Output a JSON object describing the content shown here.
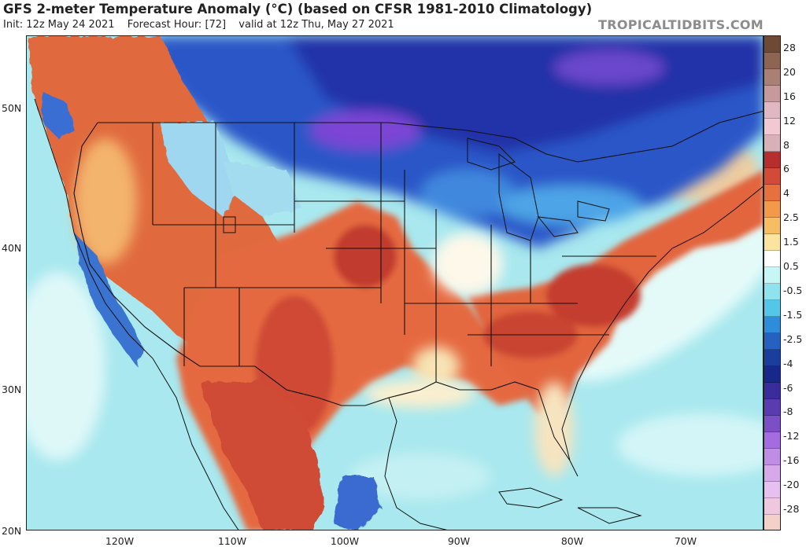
{
  "header": {
    "title": "GFS 2-meter Temperature Anomaly (°C) (based on CFSR 1981-2010 Climatology)",
    "init": "Init: 12z May 24 2021",
    "forecast_hour": "Forecast Hour: [72]",
    "valid": "valid at 12z Thu, May 27 2021",
    "brand": "TROPICALTIDBITS.COM"
  },
  "map": {
    "lat_labels": [
      "50N",
      "40N",
      "30N",
      "20N"
    ],
    "lon_labels": [
      "120W",
      "110W",
      "100W",
      "90W",
      "80W",
      "70W"
    ],
    "ocean_color": "#bfeef0",
    "warm_color": "#e0603c",
    "cold_color": "#3c57c8"
  },
  "colorbar": {
    "labels": [
      "28",
      "20",
      "16",
      "12",
      "8",
      "6",
      "4",
      "2.5",
      "1.5",
      "0.5",
      "-0.5",
      "-1.5",
      "-2.5",
      "-4",
      "-6",
      "-8",
      "-12",
      "-16",
      "-20",
      "-28"
    ],
    "colors": [
      "#6e4a36",
      "#8d6552",
      "#a97f76",
      "#c69a9a",
      "#e0b8c4",
      "#f2c8d2",
      "#d8b0b8",
      "#b72e2e",
      "#d24a38",
      "#e7703f",
      "#f2994a",
      "#f7bd62",
      "#fbe3a0",
      "#ffffff",
      "#c8f5f5",
      "#8ee3ef",
      "#52c7ea",
      "#2e8ddb",
      "#2461c1",
      "#1b3d9d",
      "#17288a",
      "#3a2c9c",
      "#5a3cb0",
      "#7c4fc6",
      "#a56be0",
      "#c08de6",
      "#d7a8ea",
      "#e6c0f0",
      "#efc8e0",
      "#f3d0c8"
    ]
  }
}
